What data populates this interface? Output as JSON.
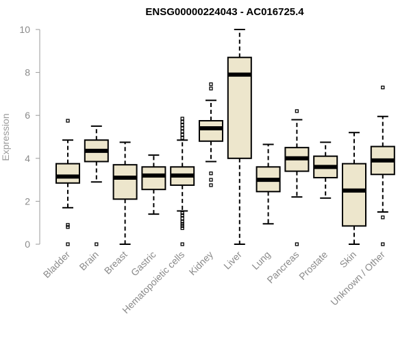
{
  "chart_data": {
    "type": "boxplot",
    "title": "ENSG00000224043 - AC016725.4",
    "xlabel": "",
    "ylabel": "Expression",
    "ylim": [
      0,
      10
    ],
    "yticks": [
      0,
      2,
      4,
      6,
      8,
      10
    ],
    "colors": {
      "box_fill": "#ede6cc",
      "stroke": "#000000",
      "axis": "#9a9a9a",
      "text": "#8a8a8a"
    },
    "categories": [
      "Bladder",
      "Brain",
      "Breast",
      "Gastric",
      "Hematopoietic cells",
      "Kidney",
      "Liver",
      "Lung",
      "Pancreas",
      "Prostate",
      "Skin",
      "Unknown / Other"
    ],
    "boxes": [
      {
        "q1": 2.85,
        "median": 3.15,
        "q3": 3.75,
        "whisker_low": 1.7,
        "whisker_high": 4.85,
        "outliers": [
          5.75,
          0.9,
          0.8,
          0.0
        ]
      },
      {
        "q1": 3.85,
        "median": 4.35,
        "q3": 4.85,
        "whisker_low": 2.9,
        "whisker_high": 5.5,
        "outliers": [
          0.0
        ]
      },
      {
        "q1": 2.1,
        "median": 3.1,
        "q3": 3.7,
        "whisker_low": 0.0,
        "whisker_high": 4.75,
        "outliers": []
      },
      {
        "q1": 2.55,
        "median": 3.2,
        "q3": 3.6,
        "whisker_low": 1.4,
        "whisker_high": 4.15,
        "outliers": []
      },
      {
        "q1": 2.75,
        "median": 3.2,
        "q3": 3.6,
        "whisker_low": 1.55,
        "whisker_high": 4.85,
        "outliers": [
          5.85,
          5.7,
          5.55,
          5.4,
          5.25,
          5.1,
          4.95,
          1.45,
          1.35,
          1.2,
          1.05,
          0.95,
          0.85,
          0.75,
          0.0
        ]
      },
      {
        "q1": 4.8,
        "median": 5.4,
        "q3": 5.75,
        "whisker_low": 3.85,
        "whisker_high": 6.7,
        "outliers": [
          7.45,
          7.25,
          3.3,
          3.0,
          2.75
        ]
      },
      {
        "q1": 4.0,
        "median": 7.9,
        "q3": 8.7,
        "whisker_low": 0.0,
        "whisker_high": 10.0,
        "outliers": []
      },
      {
        "q1": 2.45,
        "median": 3.0,
        "q3": 3.6,
        "whisker_low": 0.95,
        "whisker_high": 4.65,
        "outliers": []
      },
      {
        "q1": 3.4,
        "median": 4.0,
        "q3": 4.5,
        "whisker_low": 2.2,
        "whisker_high": 5.8,
        "outliers": [
          6.2,
          0.0
        ]
      },
      {
        "q1": 3.1,
        "median": 3.6,
        "q3": 4.1,
        "whisker_low": 2.15,
        "whisker_high": 4.75,
        "outliers": []
      },
      {
        "q1": 0.85,
        "median": 2.5,
        "q3": 3.75,
        "whisker_low": 0.0,
        "whisker_high": 5.2,
        "outliers": []
      },
      {
        "q1": 3.25,
        "median": 3.9,
        "q3": 4.55,
        "whisker_low": 1.5,
        "whisker_high": 5.95,
        "outliers": [
          7.3,
          1.25,
          0.0
        ]
      }
    ]
  }
}
